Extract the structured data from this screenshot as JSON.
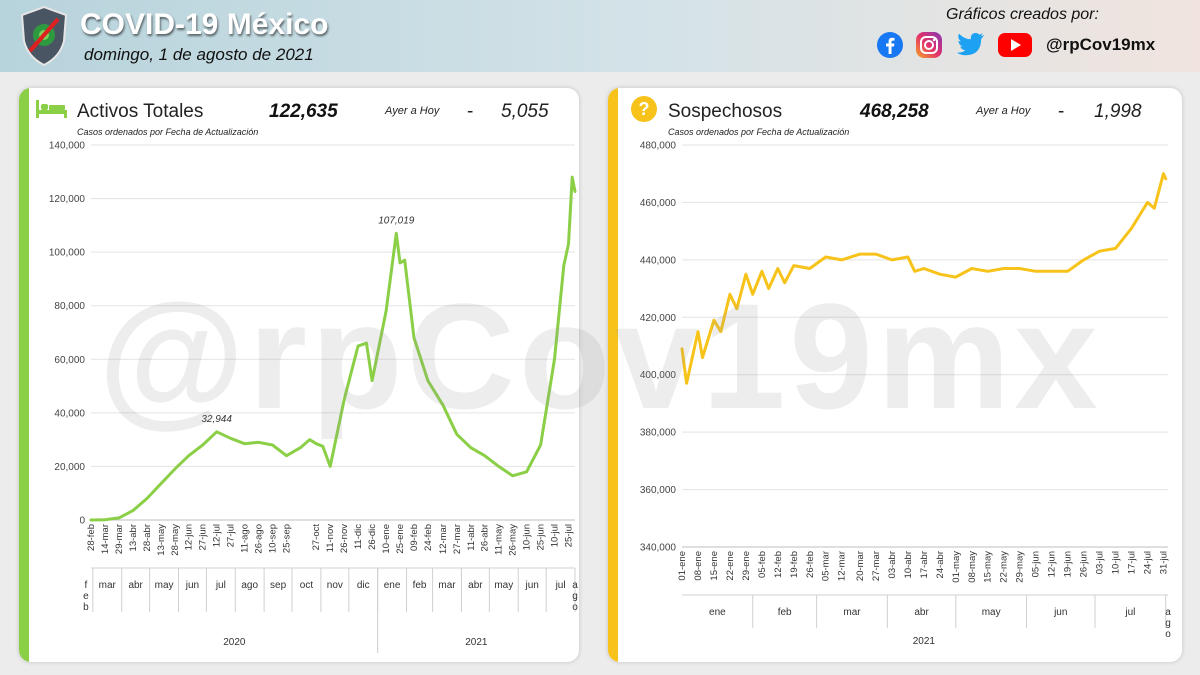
{
  "header": {
    "title": "COVID-19 México",
    "date": "domingo, 1 de agosto de 2021",
    "credits_label": "Gráficos creados por:",
    "handle": "@rpCov19mx",
    "social_icons": [
      "facebook-icon",
      "instagram-icon",
      "twitter-icon",
      "youtube-icon"
    ]
  },
  "watermark": "@rpCov19mx",
  "panels": [
    {
      "title": "Activos Totales",
      "value": "122,635",
      "compare_label": "Ayer a Hoy",
      "dash": "-",
      "delta": "5,055",
      "subtitle": "Casos ordenados por Fecha de Actualización",
      "icon": "bed-icon",
      "color": "#8bcf47"
    },
    {
      "title": "Sospechosos",
      "value": "468,258",
      "compare_label": "Ayer a Hoy",
      "dash": "-",
      "delta": "1,998",
      "subtitle": "Casos ordenados por Fecha de Actualización",
      "icon": "question-icon",
      "color": "#f7c31a"
    }
  ],
  "chart_data": [
    {
      "type": "line",
      "title": "Activos Totales",
      "ylim": [
        0,
        140000
      ],
      "yticks": [
        "0",
        "20,000",
        "40,000",
        "60,000",
        "80,000",
        "100,000",
        "120,000",
        "140,000"
      ],
      "tick_labels": [
        "28-feb",
        "14-mar",
        "29-mar",
        "13-abr",
        "28-abr",
        "13-may",
        "28-may",
        "12-jun",
        "27-jun",
        "12-jul",
        "27-jul",
        "11-ago",
        "26-ago",
        "10-sep",
        "25-sep",
        "27-oct",
        "11-nov",
        "26-nov",
        "11-dic",
        "26-dic",
        "10-ene",
        "25-ene",
        "09-feb",
        "24-feb",
        "12-mar",
        "27-mar",
        "11-abr",
        "26-abr",
        "11-may",
        "26-may",
        "10-jun",
        "25-jun",
        "10-jul",
        "25-jul"
      ],
      "months": [
        "feb",
        "mar",
        "abr",
        "may",
        "jun",
        "jul",
        "ago",
        "sep",
        "oct",
        "nov",
        "dic",
        "ene",
        "feb",
        "mar",
        "abr",
        "may",
        "jun",
        "jul",
        "ago"
      ],
      "years": [
        "2020",
        "2021"
      ],
      "annotations": [
        {
          "label": "32,944",
          "x": "12-jul-2020",
          "y": 32944
        },
        {
          "label": "107,019",
          "x": "21-ene-2021",
          "y": 107019
        }
      ],
      "series": [
        {
          "color": "#8bcf47",
          "points": [
            [
              "2020-02-28",
              0
            ],
            [
              "2020-03-14",
              100
            ],
            [
              "2020-03-29",
              800
            ],
            [
              "2020-04-13",
              3500
            ],
            [
              "2020-04-28",
              8000
            ],
            [
              "2020-05-13",
              13500
            ],
            [
              "2020-05-28",
              19000
            ],
            [
              "2020-06-12",
              24000
            ],
            [
              "2020-06-27",
              28000
            ],
            [
              "2020-07-12",
              32944
            ],
            [
              "2020-07-27",
              30500
            ],
            [
              "2020-08-11",
              28500
            ],
            [
              "2020-08-26",
              29000
            ],
            [
              "2020-09-10",
              28000
            ],
            [
              "2020-09-25",
              24000
            ],
            [
              "2020-10-10",
              27000
            ],
            [
              "2020-10-20",
              30000
            ],
            [
              "2020-10-27",
              28500
            ],
            [
              "2020-11-03",
              27500
            ],
            [
              "2020-11-11",
              20000
            ],
            [
              "2020-11-26",
              45000
            ],
            [
              "2020-12-11",
              65000
            ],
            [
              "2020-12-20",
              66000
            ],
            [
              "2020-12-26",
              52000
            ],
            [
              "2021-01-10",
              78000
            ],
            [
              "2021-01-21",
              107019
            ],
            [
              "2021-01-25",
              96000
            ],
            [
              "2021-01-30",
              97000
            ],
            [
              "2021-02-09",
              68000
            ],
            [
              "2021-02-24",
              52000
            ],
            [
              "2021-03-12",
              43000
            ],
            [
              "2021-03-27",
              32000
            ],
            [
              "2021-04-11",
              27000
            ],
            [
              "2021-04-26",
              24000
            ],
            [
              "2021-05-11",
              20000
            ],
            [
              "2021-05-26",
              16500
            ],
            [
              "2021-06-10",
              18000
            ],
            [
              "2021-06-25",
              28000
            ],
            [
              "2021-07-10",
              60000
            ],
            [
              "2021-07-20",
              95000
            ],
            [
              "2021-07-25",
              103000
            ],
            [
              "2021-07-29",
              128000
            ],
            [
              "2021-08-01",
              122635
            ]
          ]
        }
      ]
    },
    {
      "type": "line",
      "title": "Sospechosos",
      "ylim": [
        340000,
        480000
      ],
      "yticks": [
        "340,000",
        "360,000",
        "380,000",
        "400,000",
        "420,000",
        "440,000",
        "460,000",
        "480,000"
      ],
      "tick_labels": [
        "01-ene",
        "08-ene",
        "15-ene",
        "22-ene",
        "29-ene",
        "05-feb",
        "12-feb",
        "19-feb",
        "26-feb",
        "05-mar",
        "12-mar",
        "20-mar",
        "27-mar",
        "03-abr",
        "10-abr",
        "17-abr",
        "24-abr",
        "01-may",
        "08-may",
        "15-may",
        "22-may",
        "29-may",
        "05-jun",
        "12-jun",
        "19-jun",
        "26-jun",
        "03-jul",
        "10-jul",
        "17-jul",
        "24-jul",
        "31-jul"
      ],
      "months": [
        "ene",
        "feb",
        "mar",
        "abr",
        "may",
        "jun",
        "jul",
        "ago"
      ],
      "years": [
        "2021"
      ],
      "series": [
        {
          "color": "#f7c31a",
          "points": [
            [
              "2021-01-01",
              409000
            ],
            [
              "2021-01-03",
              397000
            ],
            [
              "2021-01-08",
              415000
            ],
            [
              "2021-01-10",
              406000
            ],
            [
              "2021-01-15",
              419000
            ],
            [
              "2021-01-18",
              415000
            ],
            [
              "2021-01-22",
              428000
            ],
            [
              "2021-01-25",
              423000
            ],
            [
              "2021-01-29",
              435000
            ],
            [
              "2021-02-01",
              428000
            ],
            [
              "2021-02-05",
              436000
            ],
            [
              "2021-02-08",
              430000
            ],
            [
              "2021-02-12",
              437000
            ],
            [
              "2021-02-15",
              432000
            ],
            [
              "2021-02-19",
              438000
            ],
            [
              "2021-02-26",
              437000
            ],
            [
              "2021-03-05",
              441000
            ],
            [
              "2021-03-12",
              440000
            ],
            [
              "2021-03-20",
              442000
            ],
            [
              "2021-03-27",
              442000
            ],
            [
              "2021-04-03",
              440000
            ],
            [
              "2021-04-10",
              441000
            ],
            [
              "2021-04-13",
              436000
            ],
            [
              "2021-04-17",
              437000
            ],
            [
              "2021-04-24",
              435000
            ],
            [
              "2021-05-01",
              434000
            ],
            [
              "2021-05-08",
              437000
            ],
            [
              "2021-05-15",
              436000
            ],
            [
              "2021-05-22",
              437000
            ],
            [
              "2021-05-29",
              437000
            ],
            [
              "2021-06-05",
              436000
            ],
            [
              "2021-06-12",
              436000
            ],
            [
              "2021-06-19",
              436000
            ],
            [
              "2021-06-26",
              440000
            ],
            [
              "2021-07-03",
              443000
            ],
            [
              "2021-07-10",
              444000
            ],
            [
              "2021-07-17",
              451000
            ],
            [
              "2021-07-24",
              460000
            ],
            [
              "2021-07-27",
              458000
            ],
            [
              "2021-07-31",
              470000
            ],
            [
              "2021-08-01",
              468258
            ]
          ]
        }
      ]
    }
  ]
}
